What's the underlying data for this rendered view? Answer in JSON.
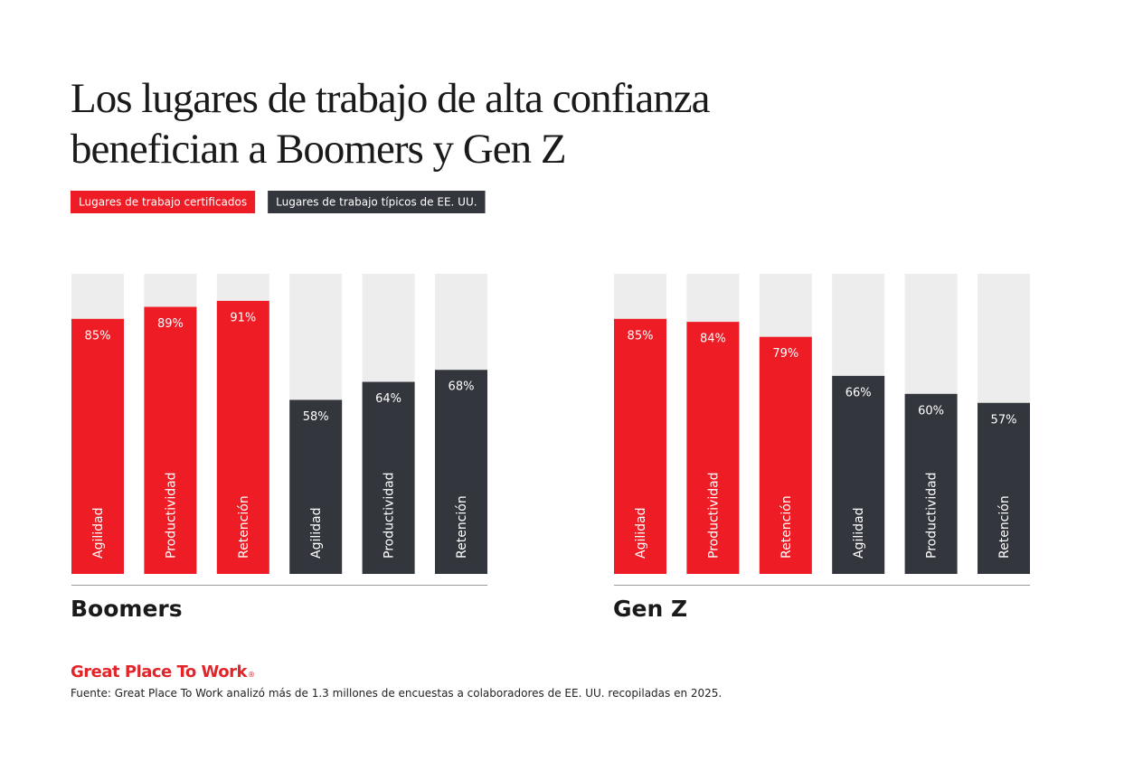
{
  "title": [
    "Los lugares de trabajo de alta confianza",
    "benefician a Boomers y Gen Z"
  ],
  "brand": "Great Place To Work",
  "brand_mark": "®",
  "source": "Fuente: Great Place To Work analizó más de 1.3 millones de encuestas a colaboradores de EE. UU. recopiladas en 2025.",
  "chart_data": [
    {
      "type": "bar",
      "title": "Boomers",
      "categories": [
        "Agilidad",
        "Productividad",
        "Retención"
      ],
      "ylim": [
        0,
        100
      ],
      "track_color": "#ededed",
      "series": [
        {
          "name": "Lugares de trabajo certificados",
          "color": "#ee1c25",
          "values": [
            85,
            89,
            91
          ],
          "value_labels": [
            "85%",
            "89%",
            "91%"
          ]
        },
        {
          "name": "Lugares de trabajo típicos de EE. UU.",
          "color": "#33373d",
          "values": [
            58,
            64,
            68
          ],
          "value_labels": [
            "58%",
            "64%",
            "68%"
          ]
        }
      ]
    },
    {
      "type": "bar",
      "title": "Gen Z",
      "categories": [
        "Agilidad",
        "Productividad",
        "Retención"
      ],
      "ylim": [
        0,
        100
      ],
      "track_color": "#ededed",
      "series": [
        {
          "color": "#ee1c25",
          "values": [
            85,
            84,
            79
          ],
          "value_labels": [
            "85%",
            "84%",
            "79%"
          ]
        },
        {
          "color": "#33373d",
          "values": [
            66,
            60,
            57
          ],
          "value_labels": [
            "66%",
            "60%",
            "57%"
          ]
        }
      ]
    }
  ]
}
